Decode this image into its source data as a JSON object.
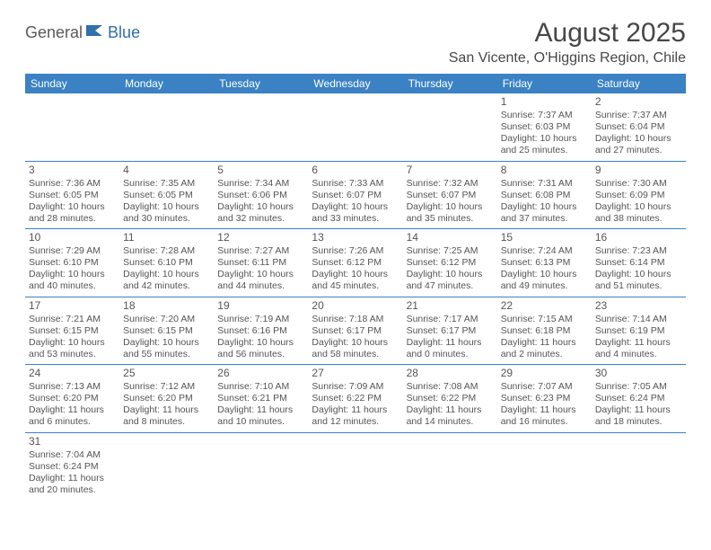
{
  "logo": {
    "part1": "General",
    "part2": "Blue"
  },
  "title": "August 2025",
  "location": "San Vicente, O'Higgins Region, Chile",
  "colors": {
    "header_bg": "#3b82c4",
    "header_text": "#ffffff",
    "border": "#3b82c4",
    "text": "#555555",
    "logo_blue": "#2f6fab"
  },
  "fonts": {
    "title_size": 30,
    "location_size": 16,
    "dayhead_size": 12,
    "cell_size": 10.5
  },
  "daynames": [
    "Sunday",
    "Monday",
    "Tuesday",
    "Wednesday",
    "Thursday",
    "Friday",
    "Saturday"
  ],
  "weeks": [
    [
      null,
      null,
      null,
      null,
      null,
      {
        "n": "1",
        "sr": "Sunrise: 7:37 AM",
        "ss": "Sunset: 6:03 PM",
        "d1": "Daylight: 10 hours",
        "d2": "and 25 minutes."
      },
      {
        "n": "2",
        "sr": "Sunrise: 7:37 AM",
        "ss": "Sunset: 6:04 PM",
        "d1": "Daylight: 10 hours",
        "d2": "and 27 minutes."
      }
    ],
    [
      {
        "n": "3",
        "sr": "Sunrise: 7:36 AM",
        "ss": "Sunset: 6:05 PM",
        "d1": "Daylight: 10 hours",
        "d2": "and 28 minutes."
      },
      {
        "n": "4",
        "sr": "Sunrise: 7:35 AM",
        "ss": "Sunset: 6:05 PM",
        "d1": "Daylight: 10 hours",
        "d2": "and 30 minutes."
      },
      {
        "n": "5",
        "sr": "Sunrise: 7:34 AM",
        "ss": "Sunset: 6:06 PM",
        "d1": "Daylight: 10 hours",
        "d2": "and 32 minutes."
      },
      {
        "n": "6",
        "sr": "Sunrise: 7:33 AM",
        "ss": "Sunset: 6:07 PM",
        "d1": "Daylight: 10 hours",
        "d2": "and 33 minutes."
      },
      {
        "n": "7",
        "sr": "Sunrise: 7:32 AM",
        "ss": "Sunset: 6:07 PM",
        "d1": "Daylight: 10 hours",
        "d2": "and 35 minutes."
      },
      {
        "n": "8",
        "sr": "Sunrise: 7:31 AM",
        "ss": "Sunset: 6:08 PM",
        "d1": "Daylight: 10 hours",
        "d2": "and 37 minutes."
      },
      {
        "n": "9",
        "sr": "Sunrise: 7:30 AM",
        "ss": "Sunset: 6:09 PM",
        "d1": "Daylight: 10 hours",
        "d2": "and 38 minutes."
      }
    ],
    [
      {
        "n": "10",
        "sr": "Sunrise: 7:29 AM",
        "ss": "Sunset: 6:10 PM",
        "d1": "Daylight: 10 hours",
        "d2": "and 40 minutes."
      },
      {
        "n": "11",
        "sr": "Sunrise: 7:28 AM",
        "ss": "Sunset: 6:10 PM",
        "d1": "Daylight: 10 hours",
        "d2": "and 42 minutes."
      },
      {
        "n": "12",
        "sr": "Sunrise: 7:27 AM",
        "ss": "Sunset: 6:11 PM",
        "d1": "Daylight: 10 hours",
        "d2": "and 44 minutes."
      },
      {
        "n": "13",
        "sr": "Sunrise: 7:26 AM",
        "ss": "Sunset: 6:12 PM",
        "d1": "Daylight: 10 hours",
        "d2": "and 45 minutes."
      },
      {
        "n": "14",
        "sr": "Sunrise: 7:25 AM",
        "ss": "Sunset: 6:12 PM",
        "d1": "Daylight: 10 hours",
        "d2": "and 47 minutes."
      },
      {
        "n": "15",
        "sr": "Sunrise: 7:24 AM",
        "ss": "Sunset: 6:13 PM",
        "d1": "Daylight: 10 hours",
        "d2": "and 49 minutes."
      },
      {
        "n": "16",
        "sr": "Sunrise: 7:23 AM",
        "ss": "Sunset: 6:14 PM",
        "d1": "Daylight: 10 hours",
        "d2": "and 51 minutes."
      }
    ],
    [
      {
        "n": "17",
        "sr": "Sunrise: 7:21 AM",
        "ss": "Sunset: 6:15 PM",
        "d1": "Daylight: 10 hours",
        "d2": "and 53 minutes."
      },
      {
        "n": "18",
        "sr": "Sunrise: 7:20 AM",
        "ss": "Sunset: 6:15 PM",
        "d1": "Daylight: 10 hours",
        "d2": "and 55 minutes."
      },
      {
        "n": "19",
        "sr": "Sunrise: 7:19 AM",
        "ss": "Sunset: 6:16 PM",
        "d1": "Daylight: 10 hours",
        "d2": "and 56 minutes."
      },
      {
        "n": "20",
        "sr": "Sunrise: 7:18 AM",
        "ss": "Sunset: 6:17 PM",
        "d1": "Daylight: 10 hours",
        "d2": "and 58 minutes."
      },
      {
        "n": "21",
        "sr": "Sunrise: 7:17 AM",
        "ss": "Sunset: 6:17 PM",
        "d1": "Daylight: 11 hours",
        "d2": "and 0 minutes."
      },
      {
        "n": "22",
        "sr": "Sunrise: 7:15 AM",
        "ss": "Sunset: 6:18 PM",
        "d1": "Daylight: 11 hours",
        "d2": "and 2 minutes."
      },
      {
        "n": "23",
        "sr": "Sunrise: 7:14 AM",
        "ss": "Sunset: 6:19 PM",
        "d1": "Daylight: 11 hours",
        "d2": "and 4 minutes."
      }
    ],
    [
      {
        "n": "24",
        "sr": "Sunrise: 7:13 AM",
        "ss": "Sunset: 6:20 PM",
        "d1": "Daylight: 11 hours",
        "d2": "and 6 minutes."
      },
      {
        "n": "25",
        "sr": "Sunrise: 7:12 AM",
        "ss": "Sunset: 6:20 PM",
        "d1": "Daylight: 11 hours",
        "d2": "and 8 minutes."
      },
      {
        "n": "26",
        "sr": "Sunrise: 7:10 AM",
        "ss": "Sunset: 6:21 PM",
        "d1": "Daylight: 11 hours",
        "d2": "and 10 minutes."
      },
      {
        "n": "27",
        "sr": "Sunrise: 7:09 AM",
        "ss": "Sunset: 6:22 PM",
        "d1": "Daylight: 11 hours",
        "d2": "and 12 minutes."
      },
      {
        "n": "28",
        "sr": "Sunrise: 7:08 AM",
        "ss": "Sunset: 6:22 PM",
        "d1": "Daylight: 11 hours",
        "d2": "and 14 minutes."
      },
      {
        "n": "29",
        "sr": "Sunrise: 7:07 AM",
        "ss": "Sunset: 6:23 PM",
        "d1": "Daylight: 11 hours",
        "d2": "and 16 minutes."
      },
      {
        "n": "30",
        "sr": "Sunrise: 7:05 AM",
        "ss": "Sunset: 6:24 PM",
        "d1": "Daylight: 11 hours",
        "d2": "and 18 minutes."
      }
    ],
    [
      {
        "n": "31",
        "sr": "Sunrise: 7:04 AM",
        "ss": "Sunset: 6:24 PM",
        "d1": "Daylight: 11 hours",
        "d2": "and 20 minutes."
      },
      null,
      null,
      null,
      null,
      null,
      null
    ]
  ]
}
